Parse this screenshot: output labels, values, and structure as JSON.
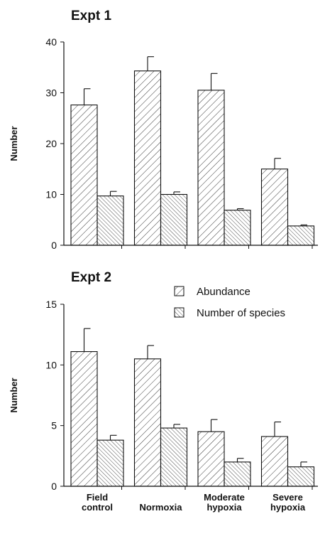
{
  "chart_data": [
    {
      "type": "bar",
      "title": "Expt 1",
      "ylabel": "Number",
      "categories": [
        null,
        null,
        null,
        null
      ],
      "series": [
        {
          "pattern": "abundance",
          "values": [
            27.6,
            34.3,
            30.5,
            15.0
          ],
          "error": [
            3.2,
            2.8,
            3.3,
            2.1
          ]
        },
        {
          "pattern": "species",
          "values": [
            9.7,
            10.0,
            6.9,
            3.8
          ],
          "error": [
            0.9,
            0.5,
            0.3,
            0.2
          ]
        }
      ],
      "ylim": [
        0,
        40
      ],
      "yticks": [
        0,
        10,
        20,
        30,
        40
      ],
      "legend": false
    },
    {
      "type": "bar",
      "title": "Expt 2",
      "ylabel": "Number",
      "categories": [
        "Field control",
        "Normoxia",
        "Moderate hypoxia",
        "Severe hypoxia"
      ],
      "series": [
        {
          "name": "Abundance",
          "pattern": "abundance",
          "values": [
            11.1,
            10.5,
            4.5,
            4.1
          ],
          "error": [
            1.9,
            1.1,
            1.0,
            1.2
          ]
        },
        {
          "name": "Number of species",
          "pattern": "species",
          "values": [
            3.8,
            4.8,
            2.0,
            1.6
          ],
          "error": [
            0.4,
            0.3,
            0.3,
            0.4
          ]
        }
      ],
      "ylim": [
        0,
        15
      ],
      "yticks": [
        0,
        5,
        10,
        15
      ],
      "legend": true
    }
  ]
}
